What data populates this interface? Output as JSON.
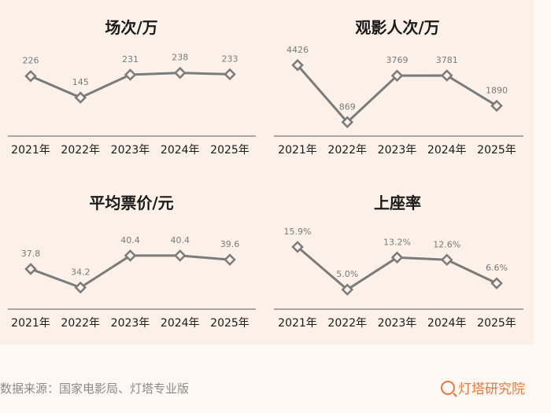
{
  "chart_data": [
    {
      "type": "line",
      "title": "场次/万",
      "categories": [
        "2021年",
        "2022年",
        "2023年",
        "2024年",
        "2025年"
      ],
      "values": [
        226,
        145,
        231,
        238,
        233
      ],
      "labels": [
        "226",
        "145",
        "231",
        "238",
        "233"
      ],
      "ylim": [
        0,
        320
      ],
      "grid": false
    },
    {
      "type": "line",
      "title": "观影人次/万",
      "categories": [
        "2021年",
        "2022年",
        "2023年",
        "2024年",
        "2025年"
      ],
      "values": [
        4426,
        869,
        3769,
        3781,
        1890
      ],
      "labels": [
        "4426",
        "869",
        "3769",
        "3781",
        "1890"
      ],
      "ylim": [
        0,
        5300
      ],
      "grid": false
    },
    {
      "type": "line",
      "title": "平均票价/元",
      "categories": [
        "2021年",
        "2022年",
        "2023年",
        "2024年",
        "2025年"
      ],
      "values": [
        37.8,
        34.2,
        40.4,
        40.4,
        39.6
      ],
      "labels": [
        "37.8",
        "34.2",
        "40.4",
        "40.4",
        "39.6"
      ],
      "ylim": [
        30,
        46.5
      ],
      "grid": false
    },
    {
      "type": "line",
      "title": "上座率",
      "categories": [
        "2021年",
        "2022年",
        "2023年",
        "2024年",
        "2025年"
      ],
      "values": [
        15.9,
        5.0,
        13.2,
        12.6,
        6.6
      ],
      "labels": [
        "15.9%",
        "5.0%",
        "13.2%",
        "12.6%",
        "6.6%"
      ],
      "ylim": [
        0,
        21.7
      ],
      "grid": false
    }
  ],
  "colors": {
    "line": "#7b7b7b",
    "background": "#fbf1e8",
    "brand": "#e8793a"
  },
  "footer": {
    "source": "数据来源：国家电影局、灯塔专业版",
    "brand": "灯塔研究院"
  }
}
